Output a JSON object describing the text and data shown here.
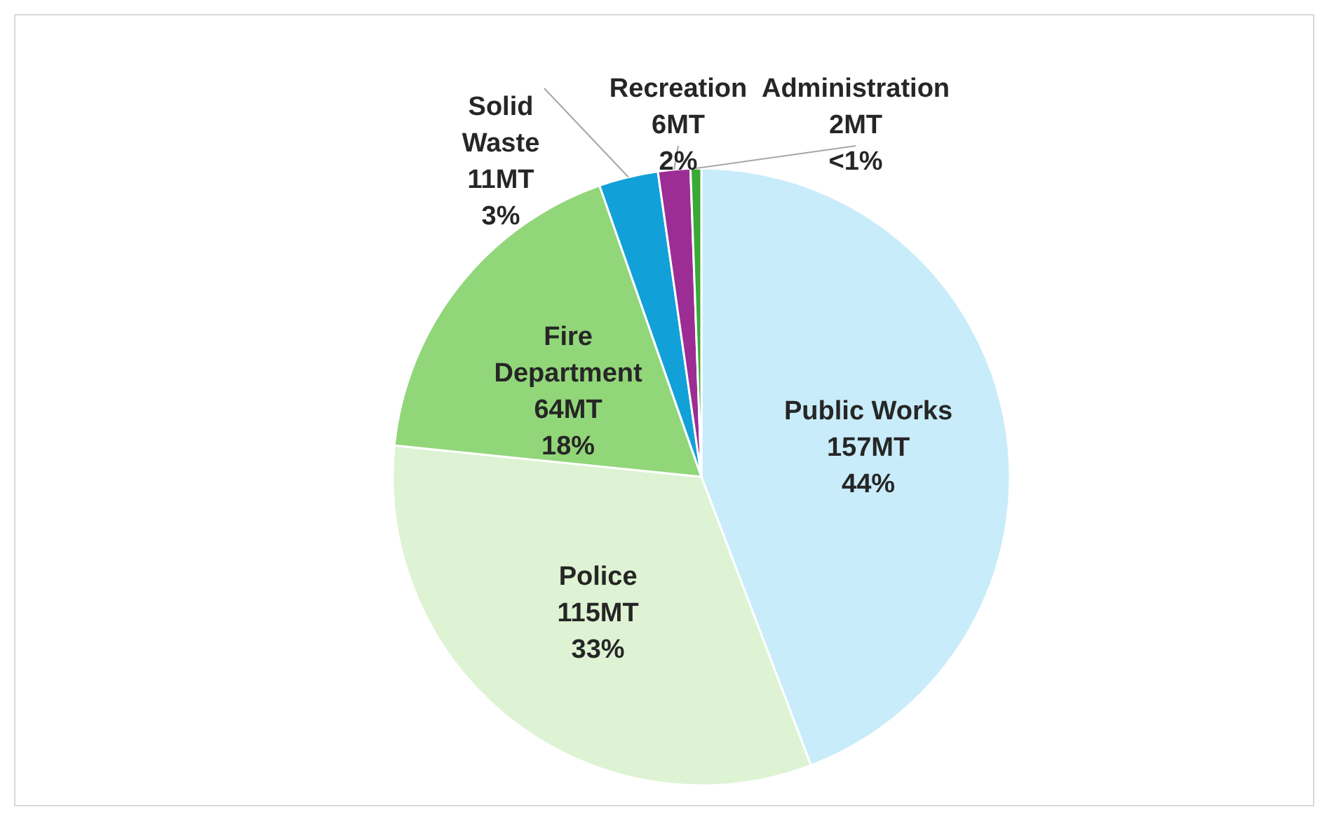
{
  "chart_data": {
    "type": "pie",
    "categories": [
      "Public Works",
      "Police",
      "Fire Department",
      "Solid Waste",
      "Recreation",
      "Administration"
    ],
    "values": [
      157,
      115,
      64,
      11,
      6,
      2
    ],
    "colors": [
      "#c9ecfa",
      "#ddf3d3",
      "#92d67a",
      "#12a0d8",
      "#9b2d94",
      "#3aa935"
    ],
    "value_labels": [
      "157MT\n44%",
      "115MT\n33%",
      "64MT\n18%",
      "11MT\n3%",
      "6MT\n2%",
      "2MT\n<1%"
    ]
  }
}
